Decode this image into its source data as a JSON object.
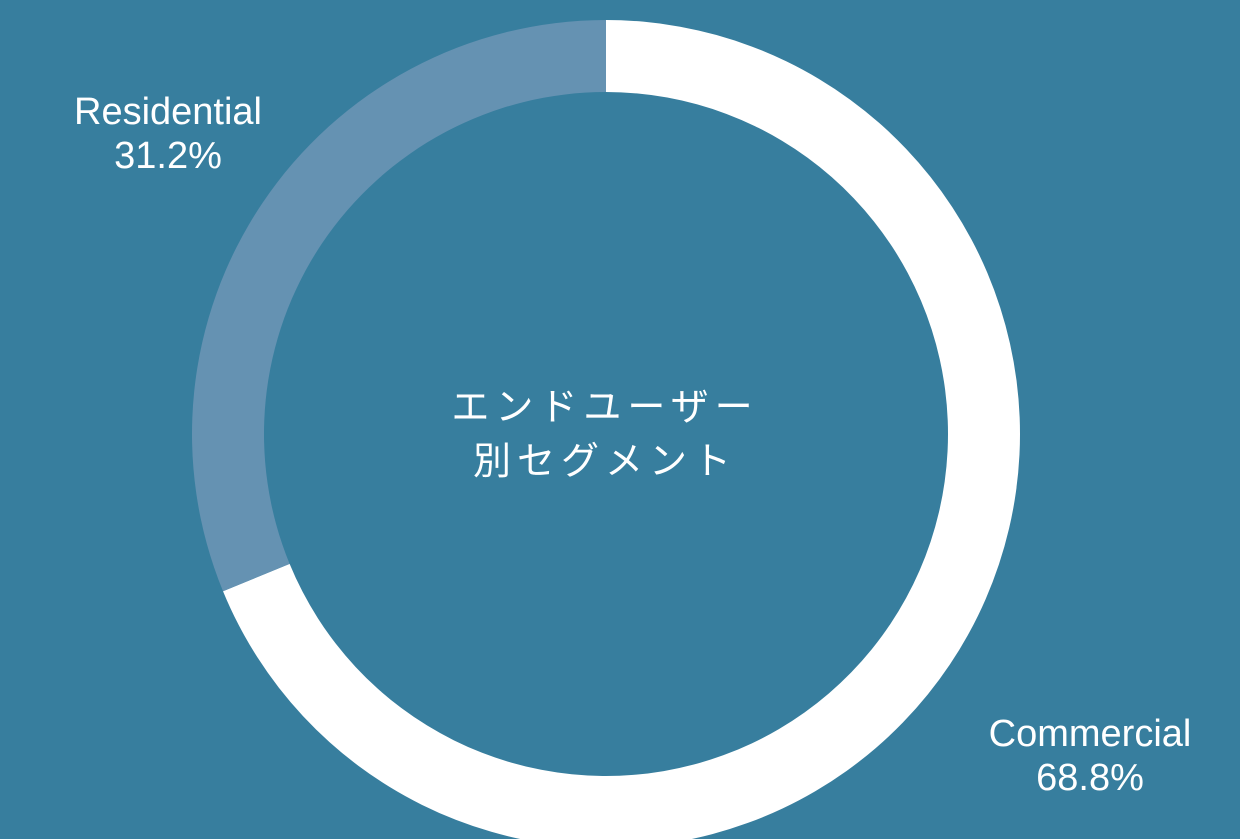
{
  "chart_data": {
    "type": "pie",
    "title": "エンドユーザー別セグメント",
    "title_lines": [
      "エンドユーザー",
      "別セグメント"
    ],
    "categories": [
      "Commercial",
      "Residential"
    ],
    "values": [
      68.8,
      31.2
    ],
    "value_labels": [
      "68.8%",
      "31.2%"
    ],
    "colors": [
      "#ffffff",
      "#6592b2"
    ],
    "legend": "none"
  },
  "theme": {
    "background": "#377e9e",
    "text_color": "#ffffff"
  }
}
